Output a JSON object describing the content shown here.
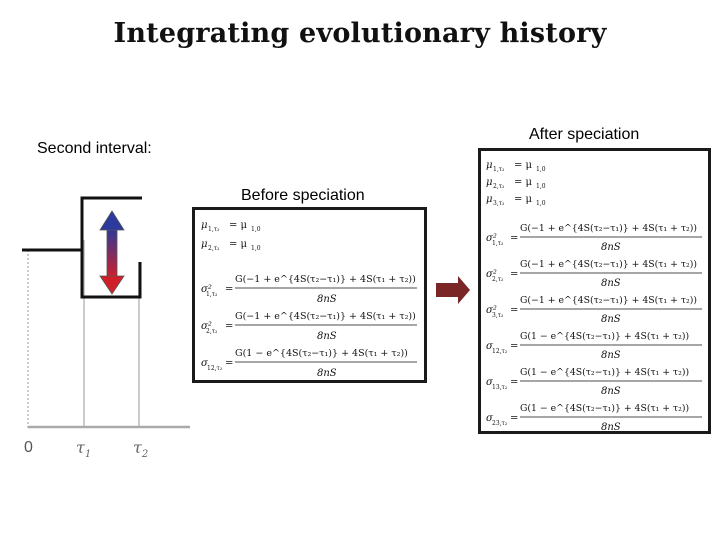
{
  "title": "Integrating evolutionary history",
  "labels": {
    "second_interval": "Second interval:",
    "before_speciation": "Before speciation",
    "after_speciation": "After speciation"
  },
  "axis": {
    "zero": "0",
    "tau1": "τ",
    "tau1_sub": "1",
    "tau2": "τ",
    "tau2_sub": "2"
  },
  "before": {
    "mu1": "μ",
    "mu1_sub": "1,τ₂",
    "mu1_rhs": "= μ",
    "mu1_rhs_sub": "1,0",
    "mu2": "μ",
    "mu2_sub": "2,τ₂",
    "mu2_rhs": "= μ",
    "mu2_rhs_sub": "1,0",
    "sig1": "σ²",
    "sig1_sub": "1,τ₂",
    "sig1_num": "G(−1 + e^{4S(τ₂−τ₁)} + 4S(τ₁ + τ₂))",
    "sig1_den": "8nS",
    "sig2": "σ²",
    "sig2_sub": "2,τ₂",
    "sig2_num": "G(−1 + e^{4S(τ₂−τ₁)} + 4S(τ₁ + τ₂))",
    "sig2_den": "8nS",
    "sig12": "σ",
    "sig12_sub": "12,τ₂",
    "sig12_num": "G(1 − e^{4S(τ₂−τ₁)} + 4S(τ₁ + τ₂))",
    "sig12_den": "8nS"
  },
  "after": {
    "mu1": "μ",
    "mu1_sub": "1,τ₂",
    "mu1_rhs": "= μ",
    "mu1_rhs_sub": "1,0",
    "mu2": "μ",
    "mu2_sub": "2,τ₂",
    "mu2_rhs": "= μ",
    "mu2_rhs_sub": "1,0",
    "mu3": "μ",
    "mu3_sub": "3,τ₂",
    "mu3_rhs": "= μ",
    "mu3_rhs_sub": "1,0",
    "rows": [
      {
        "lhs": "σ²",
        "sub": "1,τ₂",
        "num": "G(−1 + e^{4S(τ₂−τ₁)} + 4S(τ₁ + τ₂))",
        "den": "8nS"
      },
      {
        "lhs": "σ²",
        "sub": "2,τ₂",
        "num": "G(−1 + e^{4S(τ₂−τ₁)} + 4S(τ₁ + τ₂))",
        "den": "8nS"
      },
      {
        "lhs": "σ²",
        "sub": "3,τ₂",
        "num": "G(−1 + e^{4S(τ₂−τ₁)} + 4S(τ₁ + τ₂))",
        "den": "8nS"
      },
      {
        "lhs": "σ",
        "sub": "12,τ₂",
        "num": "G(1 − e^{4S(τ₂−τ₁)} + 4S(τ₁ + τ₂))",
        "den": "8nS"
      },
      {
        "lhs": "σ",
        "sub": "13,τ₂",
        "num": "G(1 − e^{4S(τ₂−τ₁)} + 4S(τ₁ + τ₂))",
        "den": "8nS"
      },
      {
        "lhs": "σ",
        "sub": "23,τ₂",
        "num": "G(1 − e^{4S(τ₂−τ₁)} + 4S(τ₁ + τ₂))",
        "den": "8nS"
      }
    ]
  },
  "colors": {
    "arrow_top": "#2b3a9c",
    "arrow_bottom": "#d11f2a",
    "right_arrow": "#7a2626",
    "box_border": "#1a1a1a"
  }
}
